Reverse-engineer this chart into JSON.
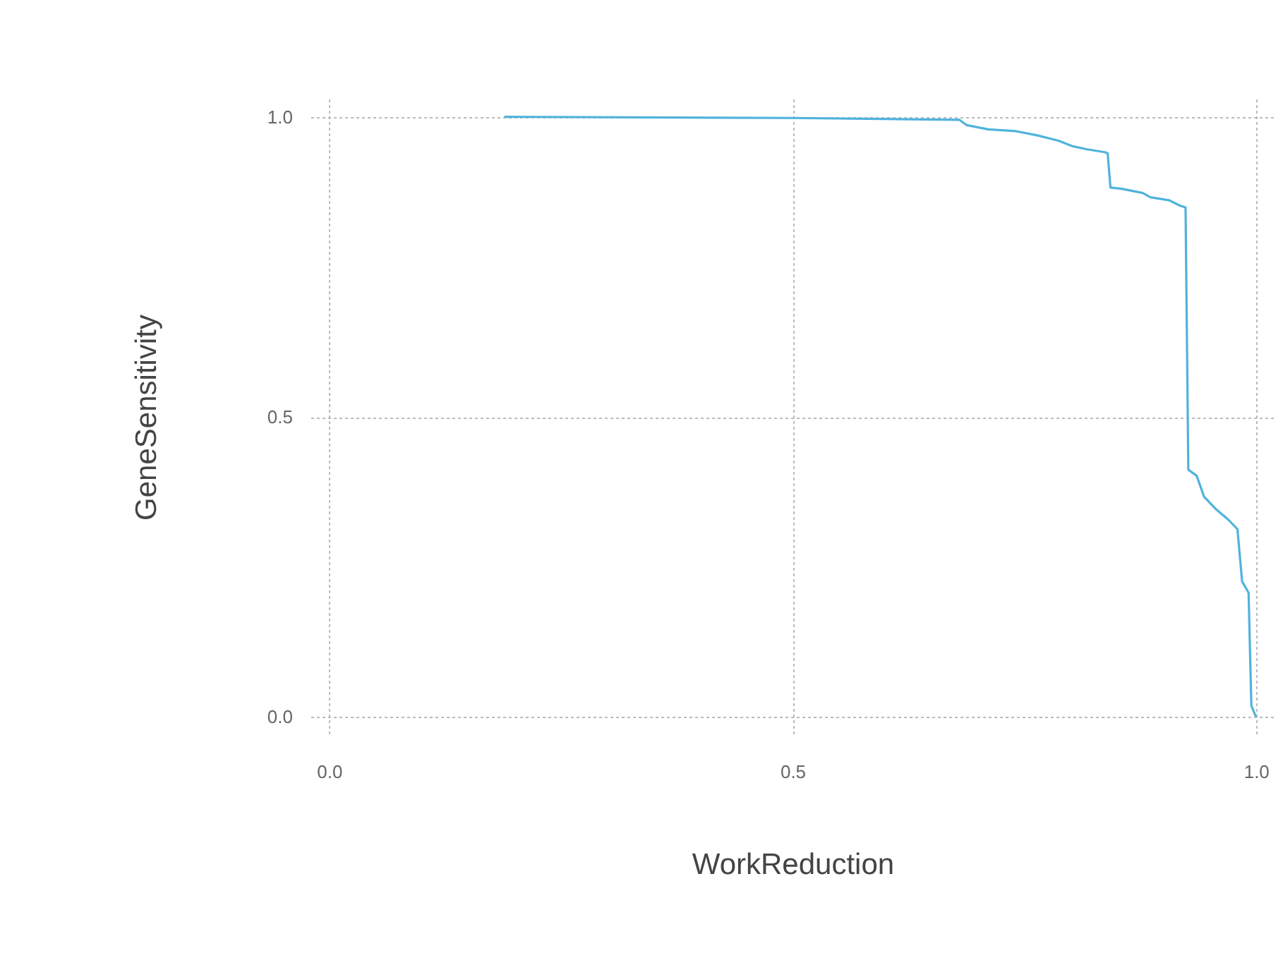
{
  "chart_data": {
    "type": "line",
    "xlabel": "WorkReduction",
    "ylabel": "GeneSensitivity",
    "x": [
      0.189,
      0.5,
      0.68,
      0.688,
      0.711,
      0.741,
      0.764,
      0.787,
      0.802,
      0.817,
      0.837,
      0.84,
      0.843,
      0.855,
      0.878,
      0.886,
      0.906,
      0.918,
      0.924,
      0.927,
      0.936,
      0.944,
      0.957,
      0.97,
      0.98,
      0.985,
      0.992,
      0.995,
      1.0
    ],
    "series": [
      {
        "color": "#4fb3dc",
        "values": [
          1.0,
          0.998,
          0.995,
          0.986,
          0.979,
          0.976,
          0.969,
          0.96,
          0.951,
          0.946,
          0.941,
          0.939,
          0.882,
          0.88,
          0.873,
          0.866,
          0.861,
          0.852,
          0.849,
          0.412,
          0.402,
          0.367,
          0.346,
          0.329,
          0.313,
          0.226,
          0.207,
          0.019,
          0.0
        ]
      }
    ],
    "xlim": [
      -0.02,
      1.02
    ],
    "ylim": [
      -0.03,
      1.03
    ],
    "xticks": [
      {
        "value": 0,
        "label": "0.0"
      },
      {
        "value": 0.5,
        "label": "0.5"
      },
      {
        "value": 1,
        "label": "1.0"
      }
    ],
    "yticks": [
      {
        "value": 0,
        "label": "0.0"
      },
      {
        "value": 0.5,
        "label": "0.5"
      },
      {
        "value": 1,
        "label": "1.0"
      }
    ],
    "grid": true,
    "marker": "none",
    "line_style": "solid"
  }
}
